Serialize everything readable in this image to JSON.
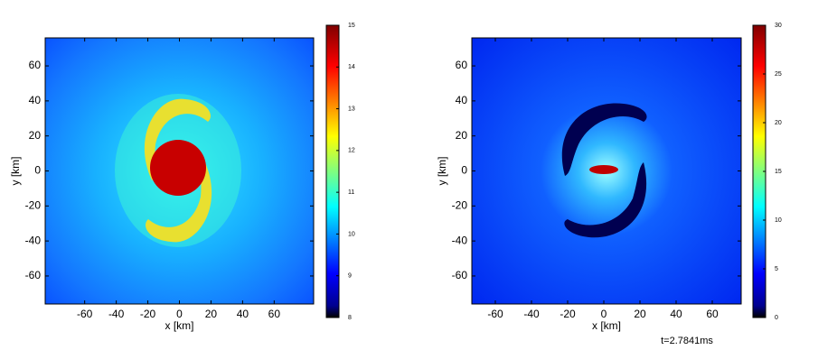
{
  "chart_data": [
    {
      "type": "heatmap",
      "xlabel": "x [km]",
      "ylabel": "y [km]",
      "xlim": [
        -85,
        85
      ],
      "ylim": [
        -76,
        76
      ],
      "xticks": [
        -60,
        -40,
        -20,
        0,
        20,
        40,
        60
      ],
      "yticks": [
        -60,
        -40,
        -20,
        0,
        20,
        40,
        60
      ],
      "clim": [
        8,
        15
      ],
      "cticks": [
        8,
        9,
        10,
        11,
        12,
        13,
        14,
        15
      ]
    },
    {
      "type": "heatmap",
      "xlabel": "x [km]",
      "ylabel": "y [km]",
      "xlim": [
        -73,
        76
      ],
      "ylim": [
        -76,
        76
      ],
      "xticks": [
        -60,
        -40,
        -20,
        0,
        20,
        40,
        60
      ],
      "yticks": [
        -60,
        -40,
        -20,
        0,
        20,
        40,
        60
      ],
      "clim": [
        0,
        30
      ],
      "cticks": [
        0,
        5,
        10,
        15,
        20,
        25,
        30
      ],
      "annotation": "t=2.7841ms"
    }
  ]
}
